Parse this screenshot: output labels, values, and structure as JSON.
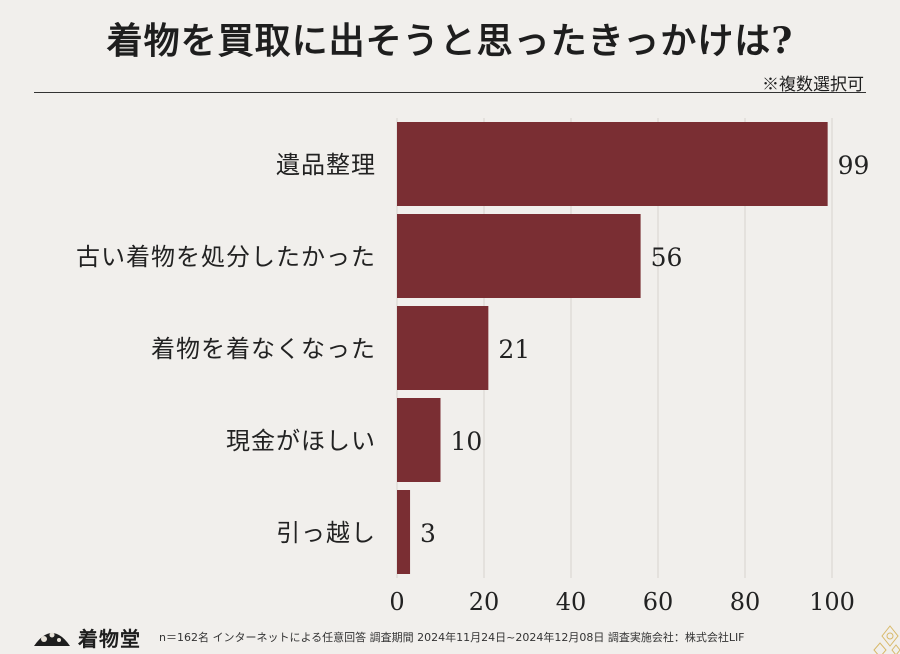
{
  "chart_data": {
    "type": "bar",
    "orientation": "horizontal",
    "title": "着物を買取に出そうと思ったきっかけは?",
    "note": "※複数選択可",
    "categories": [
      "遺品整理",
      "古い着物を処分したかった",
      "着物を着なくなった",
      "現金がほしい",
      "引っ越し"
    ],
    "values": [
      99,
      56,
      21,
      10,
      3
    ],
    "xlim": [
      0,
      100
    ],
    "xticks": [
      0,
      20,
      40,
      60,
      80,
      100
    ],
    "grid": true,
    "bar_color": "#7a2e33"
  },
  "footer": {
    "logo_text": "着物堂",
    "footnote": "n＝162名 インターネットによる任意回答 調査期間 2024年11月24日~2024年12月08日 調査実施会社：株式会社LIF"
  },
  "icons": {
    "logo": "fan-logo-icon",
    "corner": "gold-floral-corner-icon"
  }
}
